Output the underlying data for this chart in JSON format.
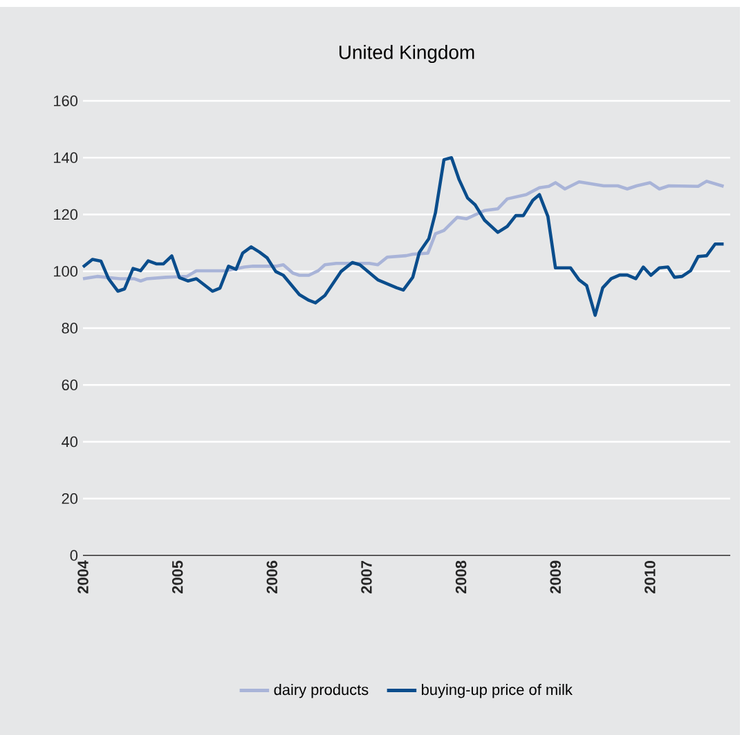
{
  "chart_data": {
    "type": "line",
    "title": "United Kingdom",
    "xlim": [
      2004,
      2010.85
    ],
    "xticks": [
      2004,
      2005,
      2006,
      2007,
      2008,
      2009,
      2010
    ],
    "ylim": [
      0,
      160
    ],
    "yticks": [
      0,
      20,
      40,
      60,
      80,
      100,
      120,
      140,
      160
    ],
    "grid": "y",
    "legend": "bottom",
    "marker": "none",
    "line_style": "solid",
    "series": [
      {
        "name": "dairy products",
        "color": "#a9b4d8",
        "x": [
          2004.0,
          2004.15,
          2004.39,
          2004.54,
          2004.61,
          2004.68,
          2004.88,
          2005.1,
          2005.2,
          2005.51,
          2005.71,
          2005.8,
          2006.05,
          2006.12,
          2006.22,
          2006.29,
          2006.39,
          2006.49,
          2006.56,
          2006.68,
          2007.03,
          2007.12,
          2007.22,
          2007.42,
          2007.49,
          2007.65,
          2007.73,
          2007.82,
          2007.96,
          2008.06,
          2008.25,
          2008.39,
          2008.49,
          2008.69,
          2008.83,
          2008.93,
          2009.0,
          2009.1,
          2009.25,
          2009.51,
          2009.66,
          2009.76,
          2009.86,
          2010.0,
          2010.1,
          2010.2,
          2010.51,
          2010.6,
          2010.78
        ],
        "values": [
          97.4,
          98.2,
          97.4,
          97.4,
          96.6,
          97.4,
          97.9,
          98.2,
          100.2,
          100.2,
          101.5,
          101.8,
          101.8,
          102.3,
          99.4,
          98.6,
          98.6,
          100.2,
          102.3,
          102.8,
          102.8,
          102.3,
          105,
          105.5,
          106,
          106.4,
          113.2,
          114.4,
          119,
          118.5,
          121.4,
          122,
          125.5,
          127,
          129.4,
          129.9,
          131.2,
          129,
          131.5,
          130.1,
          130.1,
          129,
          130.1,
          131.2,
          129,
          130.1,
          129.9,
          131.7,
          129.9
        ]
      },
      {
        "name": "buying-up price of milk",
        "color": "#0a4d8c",
        "x": [
          2004.0,
          2004.1,
          2004.19,
          2004.27,
          2004.37,
          2004.44,
          2004.53,
          2004.61,
          2004.69,
          2004.78,
          2004.85,
          2004.94,
          2005.02,
          2005.11,
          2005.2,
          2005.37,
          2005.45,
          2005.54,
          2005.62,
          2005.69,
          2005.78,
          2005.87,
          2005.95,
          2006.04,
          2006.12,
          2006.29,
          2006.39,
          2006.46,
          2006.56,
          2006.73,
          2006.85,
          2006.93,
          2007.12,
          2007.32,
          2007.39,
          2007.49,
          2007.56,
          2007.66,
          2007.73,
          2007.82,
          2007.9,
          2007.98,
          2008.07,
          2008.15,
          2008.25,
          2008.39,
          2008.49,
          2008.58,
          2008.66,
          2008.76,
          2008.83,
          2008.92,
          2009.0,
          2009.16,
          2009.25,
          2009.33,
          2009.42,
          2009.5,
          2009.59,
          2009.68,
          2009.76,
          2009.85,
          2009.93,
          2010.01,
          2010.1,
          2010.19,
          2010.26,
          2010.34,
          2010.43,
          2010.51,
          2010.6,
          2010.69,
          2010.78
        ],
        "values": [
          101.5,
          104.2,
          103.6,
          97.4,
          93,
          93.8,
          101,
          100.2,
          103.7,
          102.6,
          102.6,
          105.4,
          97.8,
          96.6,
          97.4,
          93,
          94.1,
          101.8,
          100.7,
          106.4,
          108.6,
          106.7,
          104.7,
          99.9,
          98.6,
          91.8,
          89.8,
          88.9,
          91.5,
          99.9,
          103.1,
          102.3,
          97,
          94.2,
          93.4,
          97.9,
          106.7,
          111.5,
          120.6,
          139.3,
          140,
          132.3,
          125.8,
          123.4,
          118,
          113.7,
          115.8,
          119.6,
          119.6,
          125,
          127,
          119.3,
          101.2,
          101.2,
          97,
          95,
          84.5,
          94.2,
          97.4,
          98.7,
          98.7,
          97.4,
          101.5,
          98.6,
          101.2,
          101.5,
          97.9,
          98.2,
          100.2,
          105.2,
          105.5,
          109.6,
          109.6
        ]
      }
    ]
  }
}
